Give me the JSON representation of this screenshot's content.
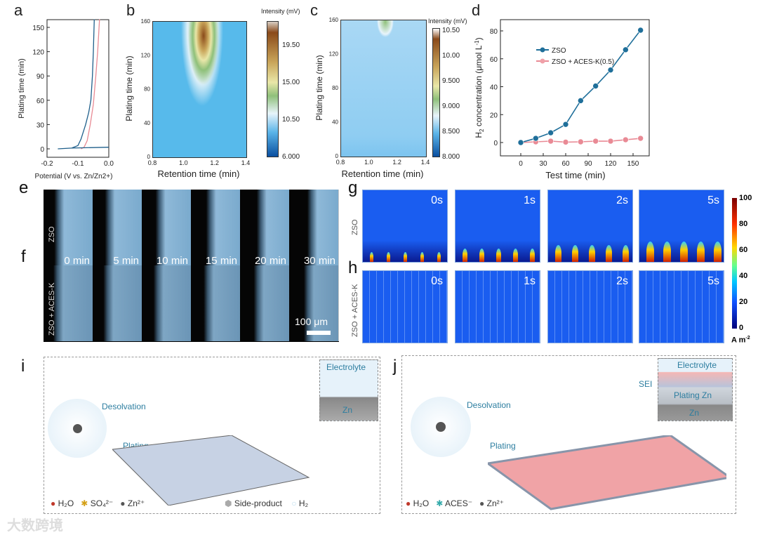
{
  "panels": {
    "a": "a",
    "b": "b",
    "c": "c",
    "d": "d",
    "e": "e",
    "f": "f",
    "g": "g",
    "h": "h",
    "i": "i",
    "j": "j"
  },
  "chart_data": [
    {
      "panel": "a",
      "type": "line",
      "xlabel": "Potential (V vs. Zn/Zn2+)",
      "ylabel": "Plating time (min)",
      "xlim": [
        -0.2,
        0.0
      ],
      "ylim": [
        -10,
        160
      ],
      "xticks": [
        "-0.2",
        "-0.1",
        "0.0"
      ],
      "yticks": [
        "0",
        "30",
        "60",
        "90",
        "120",
        "150"
      ],
      "series": [
        {
          "name": "ZSO",
          "color": "#1f5f8b",
          "x": [
            -0.165,
            -0.12,
            -0.1,
            -0.09,
            -0.075,
            -0.065,
            -0.058,
            -0.053,
            -0.05,
            -0.047
          ],
          "y": [
            0,
            1,
            4,
            12,
            30,
            45,
            60,
            90,
            120,
            160
          ]
        },
        {
          "name": "ZSO + ACES-K",
          "color": "#e88a94",
          "x": [
            -0.09,
            -0.08,
            -0.07,
            -0.06,
            -0.05,
            -0.042,
            -0.036,
            -0.03
          ],
          "y": [
            0,
            2,
            10,
            30,
            55,
            90,
            120,
            160
          ]
        }
      ]
    },
    {
      "panel": "b",
      "type": "heatmap",
      "xlabel": "Retention time (min)",
      "ylabel": "Plating time (min)",
      "xticks": [
        "0.8",
        "1.0",
        "1.2",
        "1.4"
      ],
      "yticks": [
        "0",
        "40",
        "80",
        "120",
        "160"
      ],
      "colorbar_title": "Intensity (mV)",
      "colorbar_ticks": [
        "19.50",
        "15.00",
        "10.50",
        "6.000"
      ]
    },
    {
      "panel": "c",
      "type": "heatmap",
      "xlabel": "Retention time (min)",
      "ylabel": "Plating time (min)",
      "xticks": [
        "0.8",
        "1.0",
        "1.2",
        "1.4"
      ],
      "yticks": [
        "0",
        "40",
        "80",
        "120",
        "160"
      ],
      "colorbar_title": "Intensity (mV)",
      "colorbar_ticks": [
        "10.50",
        "10.00",
        "9.500",
        "9.000",
        "8.500",
        "8.000"
      ]
    },
    {
      "panel": "d",
      "type": "line",
      "xlabel": "Test time (min)",
      "ylabel": "H2 concentration (μmol L-1)",
      "ylabel_main": "concentration (μmol L",
      "ylabel_sub": "2",
      "ylabel_h": "H",
      "ylabel_sup": "-1",
      "xlim": [
        -15,
        170
      ],
      "ylim": [
        -10,
        90
      ],
      "xticks": [
        "0",
        "30",
        "60",
        "90",
        "120",
        "150"
      ],
      "yticks": [
        "0",
        "20",
        "40",
        "60",
        "80"
      ],
      "x": [
        0,
        20,
        40,
        60,
        80,
        100,
        120,
        140,
        160
      ],
      "series": [
        {
          "name": "ZSO",
          "color": "#1f6f9a",
          "values": [
            0,
            3,
            7,
            13,
            30,
            40.5,
            52,
            66.5,
            80.5
          ]
        },
        {
          "name": "ZSO + ACES-K(0.5)",
          "color": "#e98a95",
          "values": [
            0,
            0.5,
            1,
            0.3,
            0.5,
            1,
            1,
            2,
            3
          ]
        }
      ]
    }
  ],
  "ef": {
    "row_e": "ZSO",
    "row_f": "ZSO + ACES-K",
    "times": [
      "0 min",
      "5 min",
      "10 min",
      "15 min",
      "20 min",
      "30 min"
    ],
    "scale_bar": "100 μm"
  },
  "gh": {
    "row_g": "ZSO",
    "row_h": "ZSO + ACES-K",
    "times": [
      "0s",
      "1s",
      "2s",
      "5s"
    ],
    "colorbar_ticks": [
      "100",
      "80",
      "60",
      "40",
      "20",
      "0"
    ],
    "unit": "A m",
    "unit_sup": "-2"
  },
  "i": {
    "desolvation": "Desolvation",
    "plating": "Plating",
    "electrolyte": "Electrolyte",
    "zn": "Zn",
    "legend": {
      "h2o": "H₂O",
      "so4": "SO₄²⁻",
      "zn": "Zn²⁺",
      "side": "Side-product",
      "h2": "H₂"
    }
  },
  "j": {
    "desolvation": "Desolvation",
    "plating": "Plating",
    "electrolyte": "Electrolyte",
    "sei": "SEI",
    "plating_zn": "Plating Zn",
    "zn": "Zn",
    "legend": {
      "h2o": "H₂O",
      "aces": "ACES⁻",
      "zn": "Zn²⁺"
    }
  },
  "watermark": "大数跨境"
}
